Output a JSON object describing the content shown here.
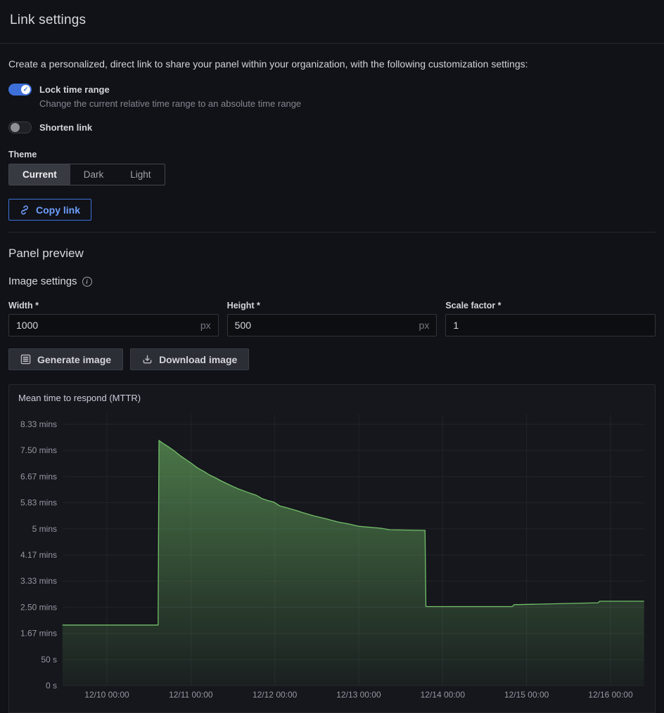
{
  "header": {
    "title": "Link settings"
  },
  "intro": "Create a personalized, direct link to share your panel within your organization, with the following customization settings:",
  "toggles": {
    "lock_time_range": {
      "label": "Lock time range",
      "description": "Change the current relative time range to an absolute time range",
      "on": true,
      "check_glyph": "✓"
    },
    "shorten_link": {
      "label": "Shorten link",
      "on": false
    }
  },
  "theme": {
    "label": "Theme",
    "options": [
      "Current",
      "Dark",
      "Light"
    ],
    "selected": "Current"
  },
  "copy_link_label": "Copy link",
  "sections": {
    "panel_preview": "Panel preview",
    "image_settings": "Image settings",
    "info_glyph": "i"
  },
  "fields": {
    "width": {
      "label": "Width *",
      "value": "1000",
      "suffix": "px"
    },
    "height": {
      "label": "Height *",
      "value": "500",
      "suffix": "px"
    },
    "scale": {
      "label": "Scale factor *",
      "value": "1"
    }
  },
  "actions": {
    "generate": "Generate image",
    "download": "Download image"
  },
  "colors": {
    "accent_blue": "#3d71d9",
    "link_blue": "#6e9fff",
    "series_green": "#73bf69",
    "grid": "rgba(204,204,220,0.07)",
    "axis_text": "rgba(204,204,220,0.70)"
  },
  "chart_data": {
    "type": "area",
    "title": "Mean time to respond (MTTR)",
    "legend_position": "none",
    "grid": true,
    "y_unit": "minutes",
    "ylim": [
      0,
      8.333
    ],
    "y_ticks": [
      {
        "v": 8.333,
        "label": "8.33 mins"
      },
      {
        "v": 7.5,
        "label": "7.50 mins"
      },
      {
        "v": 6.667,
        "label": "6.67 mins"
      },
      {
        "v": 5.833,
        "label": "5.83 mins"
      },
      {
        "v": 5.0,
        "label": "5 mins"
      },
      {
        "v": 4.167,
        "label": "4.17 mins"
      },
      {
        "v": 3.333,
        "label": "3.33 mins"
      },
      {
        "v": 2.5,
        "label": "2.50 mins"
      },
      {
        "v": 1.667,
        "label": "1.67 mins"
      },
      {
        "v": 0.833,
        "label": "50 s"
      },
      {
        "v": 0,
        "label": "0 s"
      }
    ],
    "x_ticks": [
      {
        "d": 0,
        "label": "12/10 00:00"
      },
      {
        "d": 1,
        "label": "12/11 00:00"
      },
      {
        "d": 2,
        "label": "12/12 00:00"
      },
      {
        "d": 3,
        "label": "12/13 00:00"
      },
      {
        "d": 4,
        "label": "12/14 00:00"
      },
      {
        "d": 5,
        "label": "12/15 00:00"
      },
      {
        "d": 6,
        "label": "12/16 00:00"
      }
    ],
    "x_range_days": [
      -0.53,
      6.4
    ],
    "series": [
      {
        "name": "Mean time to respond (MTTR)",
        "unit": "mins",
        "points": [
          [
            -0.53,
            1.93
          ],
          [
            0.61,
            1.93
          ],
          [
            0.62,
            7.82
          ],
          [
            0.66,
            7.74
          ],
          [
            0.73,
            7.62
          ],
          [
            0.8,
            7.49
          ],
          [
            0.87,
            7.34
          ],
          [
            0.94,
            7.21
          ],
          [
            1.01,
            7.08
          ],
          [
            1.08,
            6.94
          ],
          [
            1.15,
            6.84
          ],
          [
            1.22,
            6.72
          ],
          [
            1.29,
            6.63
          ],
          [
            1.36,
            6.53
          ],
          [
            1.43,
            6.44
          ],
          [
            1.5,
            6.35
          ],
          [
            1.57,
            6.27
          ],
          [
            1.64,
            6.2
          ],
          [
            1.71,
            6.13
          ],
          [
            1.78,
            6.07
          ],
          [
            1.85,
            5.96
          ],
          [
            1.92,
            5.9
          ],
          [
            1.99,
            5.85
          ],
          [
            2.06,
            5.73
          ],
          [
            2.13,
            5.68
          ],
          [
            2.2,
            5.63
          ],
          [
            2.27,
            5.57
          ],
          [
            2.33,
            5.52
          ],
          [
            2.47,
            5.41
          ],
          [
            2.61,
            5.32
          ],
          [
            2.75,
            5.22
          ],
          [
            2.89,
            5.15
          ],
          [
            3.0,
            5.08
          ],
          [
            3.26,
            5.02
          ],
          [
            3.37,
            4.97
          ],
          [
            3.79,
            4.95
          ],
          [
            3.8,
            2.52
          ],
          [
            4.83,
            2.52
          ],
          [
            4.85,
            2.58
          ],
          [
            5.85,
            2.64
          ],
          [
            5.87,
            2.69
          ],
          [
            6.4,
            2.69
          ]
        ]
      }
    ]
  }
}
